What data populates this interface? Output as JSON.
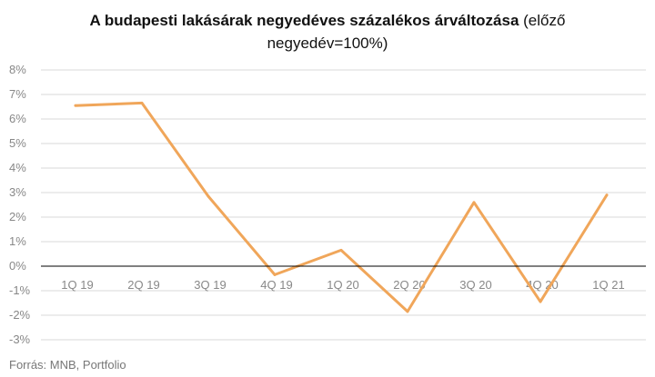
{
  "chart_data": {
    "type": "line",
    "title_bold": "A budapesti lakásárak negyedéves százalékos árváltozása",
    "title_rest_line1": " (előző",
    "title_line2": "negyedév=100%)",
    "categories": [
      "1Q 19",
      "2Q 19",
      "3Q 19",
      "4Q 19",
      "1Q 20",
      "2Q 20",
      "3Q 20",
      "4Q 20",
      "1Q  21"
    ],
    "series": [
      {
        "values": [
          6.55,
          6.65,
          2.85,
          -0.35,
          0.65,
          -1.85,
          2.6,
          -1.45,
          2.9
        ],
        "color": "#F0A65A"
      }
    ],
    "y_ticks": [
      8,
      7,
      6,
      5,
      4,
      3,
      2,
      1,
      0,
      -1,
      -2,
      -3
    ],
    "y_tick_labels": [
      "8%",
      "7%",
      "6%",
      "5%",
      "4%",
      "3%",
      "2%",
      "1%",
      "0%",
      "-1%",
      "-2%",
      "-3%"
    ],
    "ylim": [
      -3,
      8
    ],
    "grid": true,
    "source": "Forrás: MNB, Portfolio"
  }
}
